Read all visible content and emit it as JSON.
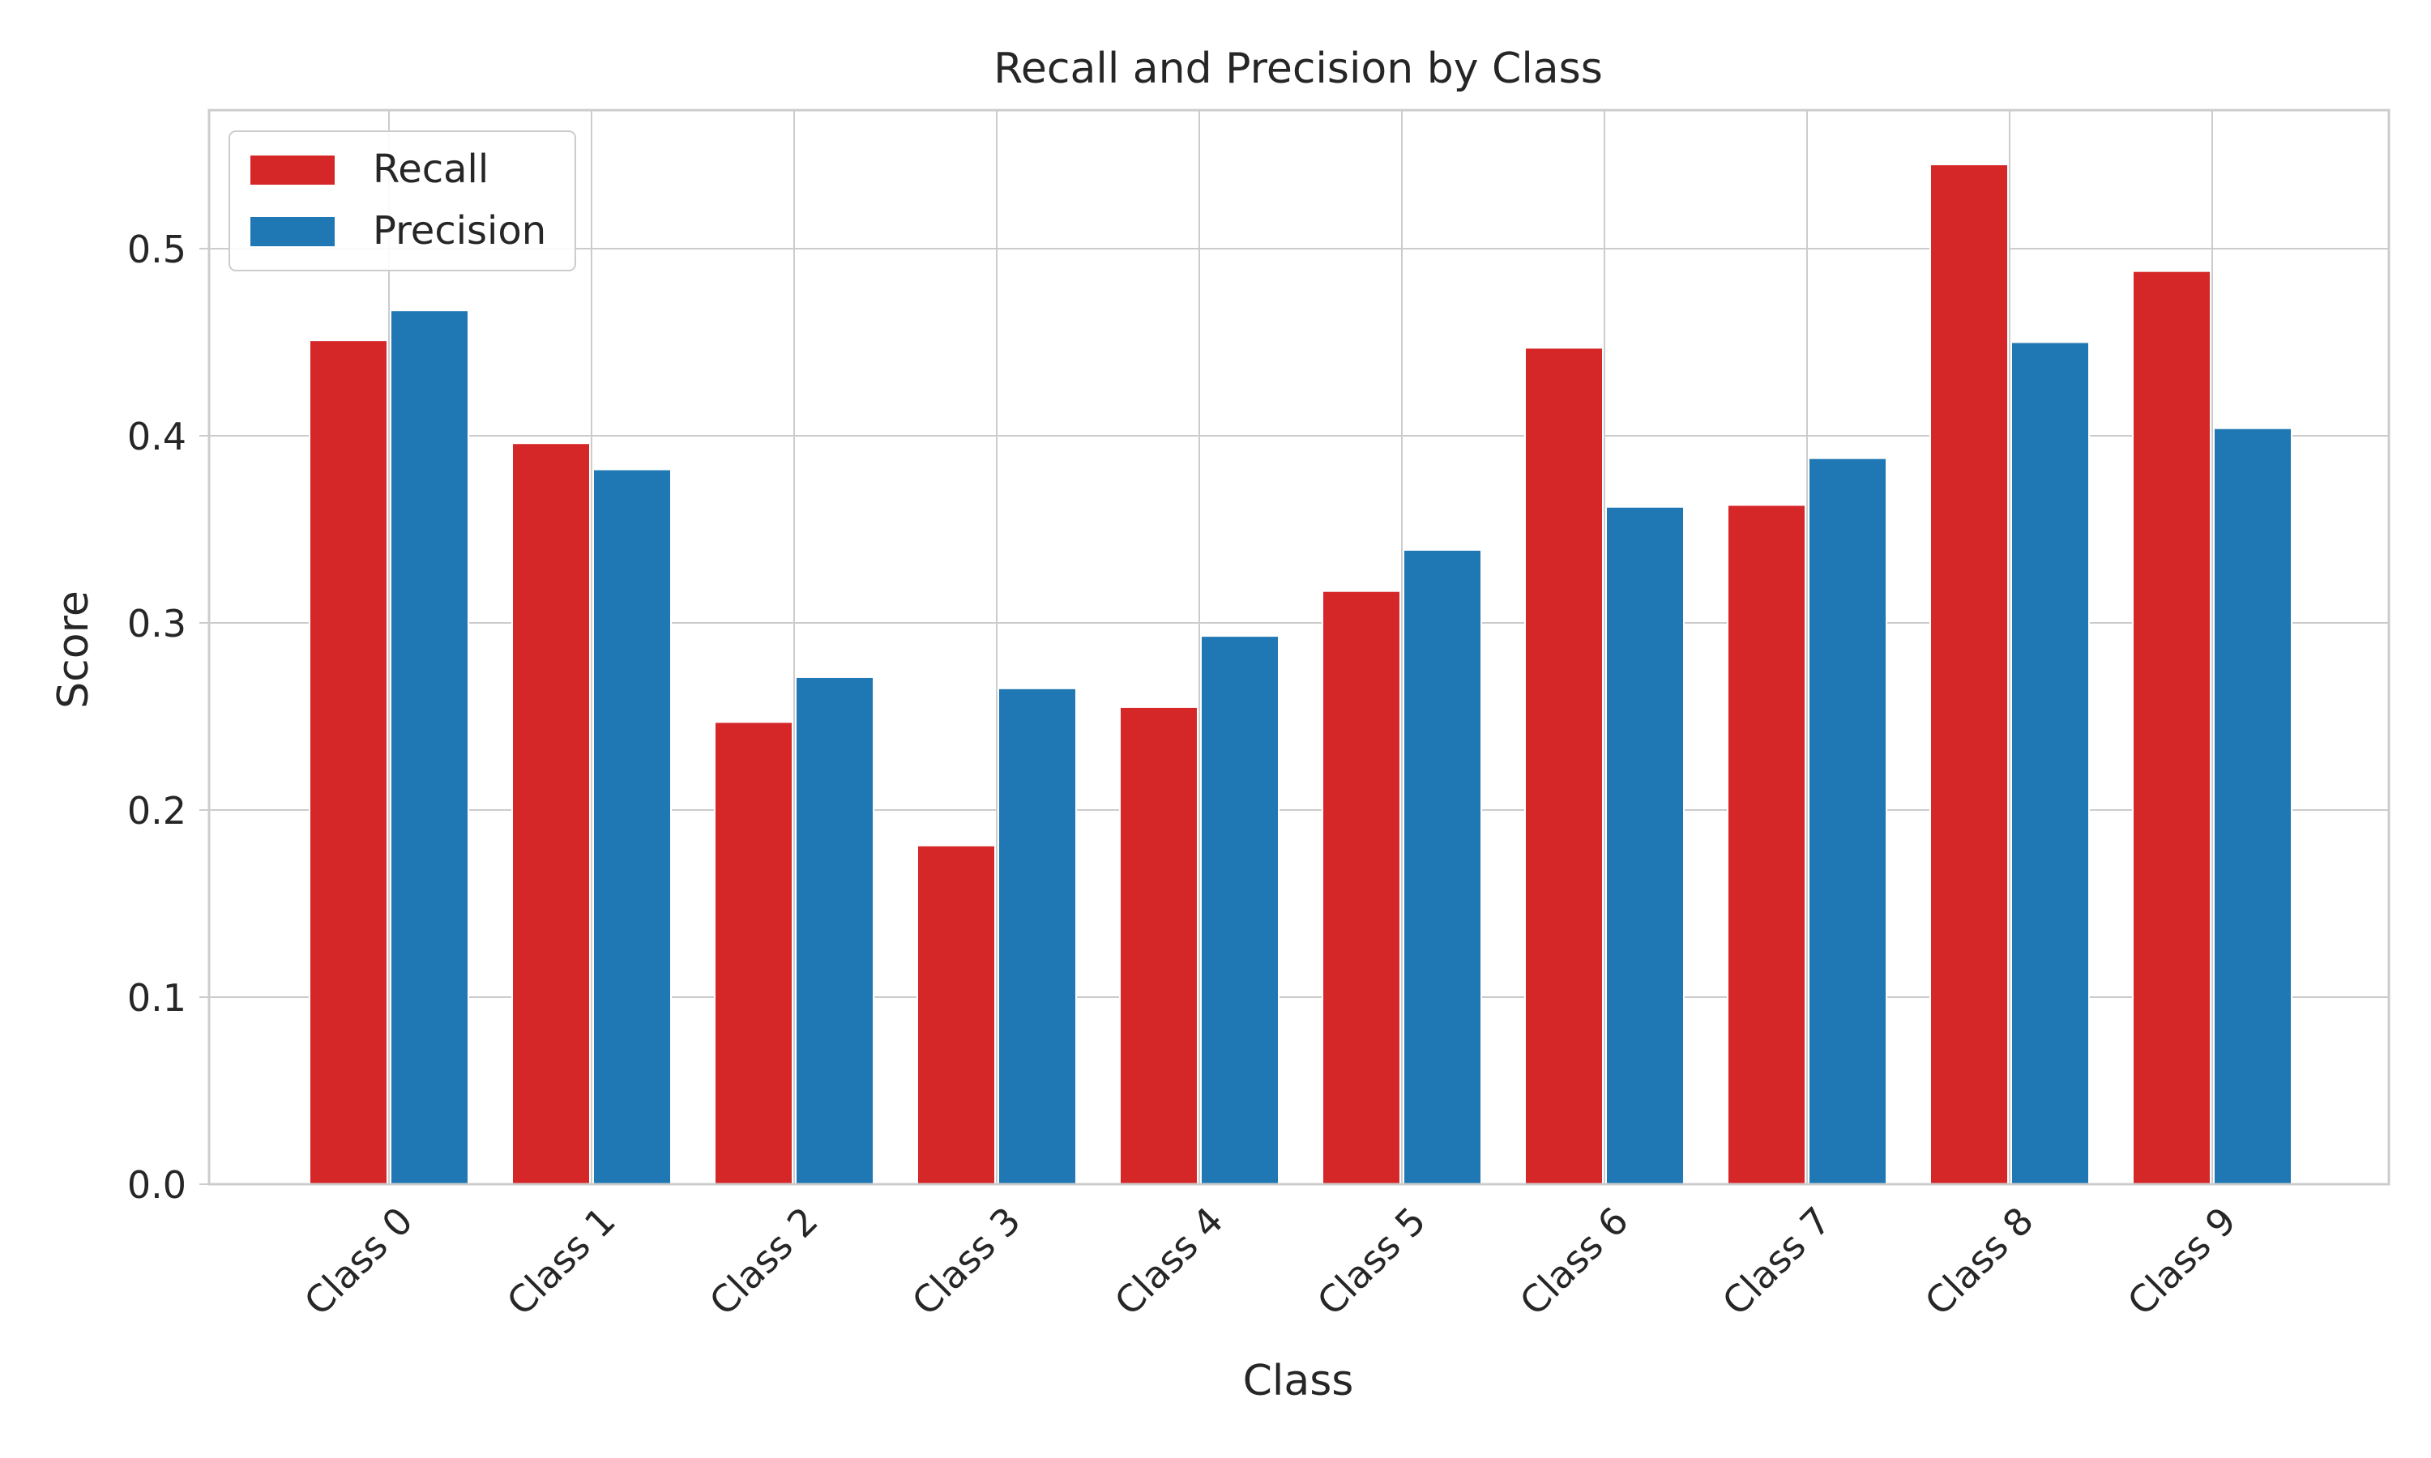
{
  "chart_data": {
    "type": "bar",
    "title": "Recall and Precision by Class",
    "xlabel": "Class",
    "ylabel": "Score",
    "categories": [
      "Class 0",
      "Class 1",
      "Class 2",
      "Class 3",
      "Class 4",
      "Class 5",
      "Class 6",
      "Class 7",
      "Class 8",
      "Class 9"
    ],
    "series": [
      {
        "name": "Recall",
        "color": "#d62728",
        "values": [
          0.451,
          0.396,
          0.247,
          0.181,
          0.255,
          0.317,
          0.447,
          0.363,
          0.545,
          0.488
        ]
      },
      {
        "name": "Precision",
        "color": "#1f77b4",
        "values": [
          0.467,
          0.382,
          0.271,
          0.265,
          0.293,
          0.339,
          0.362,
          0.388,
          0.45,
          0.404
        ]
      }
    ],
    "ylim": [
      0,
      0.574
    ],
    "yticks": [
      "0.0",
      "0.1",
      "0.2",
      "0.3",
      "0.4",
      "0.5"
    ],
    "grid": true,
    "legend_position": "top-left",
    "xtick_rotation": "45 degrees"
  }
}
